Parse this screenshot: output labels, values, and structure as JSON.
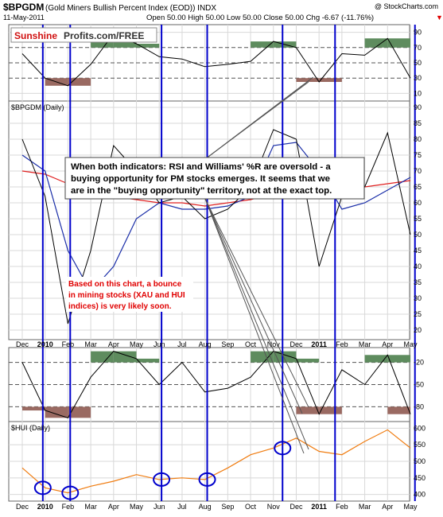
{
  "header": {
    "symbol": "$BPGDM",
    "name": "(Gold Miners Bullish Percent Index (EOD)) INDX",
    "copyright": "@ StockCharts.com",
    "date": "11-May-2011",
    "quote": "Open 50.00   High 50.00   Low 50.00   Close 50.00   Chg -6.67 (-11.76%)",
    "quote_arrow": "▼"
  },
  "logo": {
    "part1": "Sunshine",
    "part2": "Profits.com/FREE"
  },
  "panels": {
    "rsi": {
      "label": "",
      "ticks": [
        "90",
        "70",
        "50",
        "30",
        "10"
      ]
    },
    "main": {
      "label": "$BPGDM (Daily)",
      "ticks": [
        "90",
        "85",
        "80",
        "75",
        "70",
        "65",
        "60",
        "55",
        "50",
        "45",
        "40",
        "35",
        "30",
        "25",
        "20"
      ]
    },
    "willr": {
      "label": "",
      "ticks": [
        "-20",
        "-50",
        "-80"
      ]
    },
    "hui": {
      "label": "$HUI (Daily)",
      "ticks": [
        "600",
        "550",
        "500",
        "450",
        "400"
      ]
    }
  },
  "x_labels": [
    "Dec",
    "2010",
    "Feb",
    "Mar",
    "Apr",
    "May",
    "Jun",
    "Jul",
    "Aug",
    "Sep",
    "Oct",
    "Nov",
    "Dec",
    "2011",
    "Feb",
    "Mar",
    "Apr",
    "May"
  ],
  "annotations": {
    "note_main": [
      "When both indicators: RSI and Williams' %R are oversold - a",
      "buying opportunity for PM stocks emerges. It seems that we",
      "are in the \"buying opportunity\" territory, not at the exact top."
    ],
    "note_red": [
      "Based on this chart, a bounce",
      "in mining stocks (XAU and HUI",
      "indices) is very likely soon."
    ]
  },
  "colors": {
    "price_line": "#000000",
    "ma_red": "#e02020",
    "ma_blue": "#1a2ea8",
    "hui_line": "#f07c10",
    "signal_line": "#0000cc",
    "overbought_fill": "#5e8c5e",
    "oversold_fill": "#9a6a62",
    "red_text": "#e00000"
  },
  "chart_data": [
    {
      "type": "line",
      "title": "RSI",
      "ylim": [
        0,
        100
      ],
      "reference_levels": [
        70,
        50,
        30
      ],
      "x": [
        "Dec",
        "2010",
        "Feb",
        "Mar",
        "Apr",
        "May",
        "Jun",
        "Jul",
        "Aug",
        "Sep",
        "Oct",
        "Nov",
        "Dec",
        "2011",
        "Feb",
        "Mar",
        "Apr",
        "May"
      ],
      "series": [
        {
          "values": [
            62,
            30,
            20,
            48,
            88,
            75,
            58,
            55,
            45,
            48,
            52,
            78,
            70,
            25,
            62,
            60,
            82,
            30
          ]
        }
      ]
    },
    {
      "type": "line",
      "title": "$BPGDM (Daily)",
      "ylim": [
        17,
        92
      ],
      "x": [
        "Dec",
        "2010",
        "Feb",
        "Mar",
        "Apr",
        "May",
        "Jun",
        "Jul",
        "Aug",
        "Sep",
        "Oct",
        "Nov",
        "Dec",
        "2011",
        "Feb",
        "Mar",
        "Apr",
        "May"
      ],
      "series": [
        {
          "values": [
            80,
            62,
            22,
            45,
            78,
            70,
            60,
            62,
            55,
            58,
            65,
            83,
            80,
            40,
            62,
            65,
            82,
            50
          ]
        },
        {
          "values": [
            70,
            69,
            66,
            63,
            62,
            61,
            60,
            60,
            59,
            60,
            61,
            63,
            65,
            64,
            64,
            65,
            66,
            67
          ]
        },
        {
          "values": [
            75,
            70,
            45,
            32,
            40,
            55,
            60,
            58,
            58,
            59,
            62,
            78,
            79,
            70,
            58,
            60,
            64,
            68
          ]
        }
      ]
    },
    {
      "type": "line",
      "title": "Williams %R",
      "ylim": [
        -100,
        0
      ],
      "reference_levels": [
        -20,
        -50,
        -80
      ],
      "x": [
        "Dec",
        "2010",
        "Feb",
        "Mar",
        "Apr",
        "May",
        "Jun",
        "Jul",
        "Aug",
        "Sep",
        "Oct",
        "Nov",
        "Dec",
        "2011",
        "Feb",
        "Mar",
        "Apr",
        "May"
      ],
      "series": [
        {
          "values": [
            -20,
            -85,
            -95,
            -40,
            -5,
            -15,
            -50,
            -20,
            -60,
            -55,
            -40,
            -5,
            -15,
            -90,
            -30,
            -50,
            -10,
            -90
          ]
        }
      ]
    },
    {
      "type": "line",
      "title": "$HUI (Daily)",
      "ylim": [
        380,
        620
      ],
      "x": [
        "Dec",
        "2010",
        "Feb",
        "Mar",
        "Apr",
        "May",
        "Jun",
        "Jul",
        "Aug",
        "Sep",
        "Oct",
        "Nov",
        "Dec",
        "2011",
        "Feb",
        "Mar",
        "Apr",
        "May"
      ],
      "series": [
        {
          "values": [
            480,
            420,
            405,
            425,
            440,
            460,
            445,
            450,
            445,
            480,
            520,
            540,
            570,
            530,
            520,
            560,
            595,
            540
          ]
        }
      ]
    }
  ]
}
